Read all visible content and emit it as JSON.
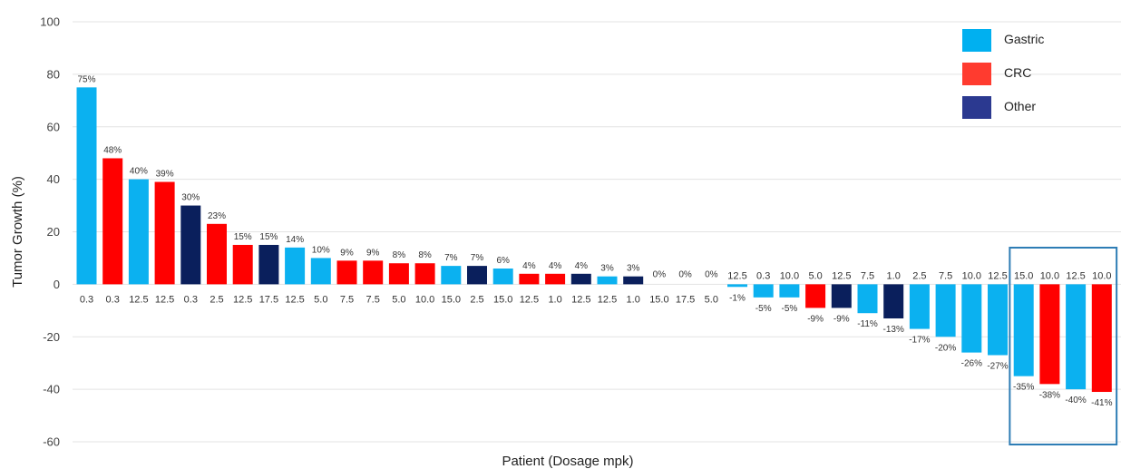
{
  "chart_data": {
    "type": "bar",
    "title": "",
    "xlabel": "Patient (Dosage mpk)",
    "ylabel": "Tumor Growth (%)",
    "ylim": [
      -60,
      100
    ],
    "yticks": [
      100,
      80,
      60,
      40,
      20,
      0,
      -20,
      -40,
      -60
    ],
    "grid": true,
    "legend_position": "top-right",
    "legend": [
      {
        "name": "Gastric",
        "color": "#00B0F0"
      },
      {
        "name": "CRC",
        "color": "#FF3B2F"
      },
      {
        "name": "Other",
        "color": "#2B3990"
      }
    ],
    "colors": {
      "Gastric": "#0BB1F0",
      "CRC": "#FF0000",
      "Other": "#0A1F5C"
    },
    "bars": [
      {
        "dose": "0.3",
        "value": 75,
        "label": "75%",
        "group": "Gastric"
      },
      {
        "dose": "0.3",
        "value": 48,
        "label": "48%",
        "group": "CRC"
      },
      {
        "dose": "12.5",
        "value": 40,
        "label": "40%",
        "group": "Gastric"
      },
      {
        "dose": "12.5",
        "value": 39,
        "label": "39%",
        "group": "CRC"
      },
      {
        "dose": "0.3",
        "value": 30,
        "label": "30%",
        "group": "Other"
      },
      {
        "dose": "2.5",
        "value": 23,
        "label": "23%",
        "group": "CRC"
      },
      {
        "dose": "12.5",
        "value": 15,
        "label": "15%",
        "group": "CRC"
      },
      {
        "dose": "17.5",
        "value": 15,
        "label": "15%",
        "group": "Other"
      },
      {
        "dose": "12.5",
        "value": 14,
        "label": "14%",
        "group": "Gastric"
      },
      {
        "dose": "5.0",
        "value": 10,
        "label": "10%",
        "group": "Gastric"
      },
      {
        "dose": "7.5",
        "value": 9,
        "label": "9%",
        "group": "CRC"
      },
      {
        "dose": "7.5",
        "value": 9,
        "label": "9%",
        "group": "CRC"
      },
      {
        "dose": "5.0",
        "value": 8,
        "label": "8%",
        "group": "CRC"
      },
      {
        "dose": "10.0",
        "value": 8,
        "label": "8%",
        "group": "CRC"
      },
      {
        "dose": "15.0",
        "value": 7,
        "label": "7%",
        "group": "Gastric"
      },
      {
        "dose": "2.5",
        "value": 7,
        "label": "7%",
        "group": "Other"
      },
      {
        "dose": "15.0",
        "value": 6,
        "label": "6%",
        "group": "Gastric"
      },
      {
        "dose": "12.5",
        "value": 4,
        "label": "4%",
        "group": "CRC"
      },
      {
        "dose": "1.0",
        "value": 4,
        "label": "4%",
        "group": "CRC"
      },
      {
        "dose": "12.5",
        "value": 4,
        "label": "4%",
        "group": "Other"
      },
      {
        "dose": "12.5",
        "value": 3,
        "label": "3%",
        "group": "Gastric"
      },
      {
        "dose": "1.0",
        "value": 3,
        "label": "3%",
        "group": "Other"
      },
      {
        "dose": "15.0",
        "value": 0,
        "label": "0%",
        "group": "Gastric"
      },
      {
        "dose": "17.5",
        "value": 0,
        "label": "0%",
        "group": "Gastric"
      },
      {
        "dose": "5.0",
        "value": 0,
        "label": "0%",
        "group": "Gastric"
      },
      {
        "dose": "12.5",
        "value": -1,
        "label": "-1%",
        "group": "Gastric"
      },
      {
        "dose": "0.3",
        "value": -5,
        "label": "-5%",
        "group": "Gastric"
      },
      {
        "dose": "10.0",
        "value": -5,
        "label": "-5%",
        "group": "Gastric"
      },
      {
        "dose": "5.0",
        "value": -9,
        "label": "-9%",
        "group": "CRC"
      },
      {
        "dose": "12.5",
        "value": -9,
        "label": "-9%",
        "group": "Other"
      },
      {
        "dose": "7.5",
        "value": -11,
        "label": "-11%",
        "group": "Gastric"
      },
      {
        "dose": "1.0",
        "value": -13,
        "label": "-13%",
        "group": "Other"
      },
      {
        "dose": "2.5",
        "value": -17,
        "label": "-17%",
        "group": "Gastric"
      },
      {
        "dose": "7.5",
        "value": -20,
        "label": "-20%",
        "group": "Gastric"
      },
      {
        "dose": "10.0",
        "value": -26,
        "label": "-26%",
        "group": "Gastric"
      },
      {
        "dose": "12.5",
        "value": -27,
        "label": "-27%",
        "group": "Gastric"
      },
      {
        "dose": "15.0",
        "value": -35,
        "label": "-35%",
        "group": "Gastric"
      },
      {
        "dose": "10.0",
        "value": -38,
        "label": "-38%",
        "group": "CRC"
      },
      {
        "dose": "12.5",
        "value": -40,
        "label": "-40%",
        "group": "Gastric"
      },
      {
        "dose": "10.0",
        "value": -41,
        "label": "-41%",
        "group": "CRC"
      }
    ],
    "highlight": {
      "from_bar": 36,
      "to_bar": 39,
      "color": "#2E7DB5"
    }
  }
}
